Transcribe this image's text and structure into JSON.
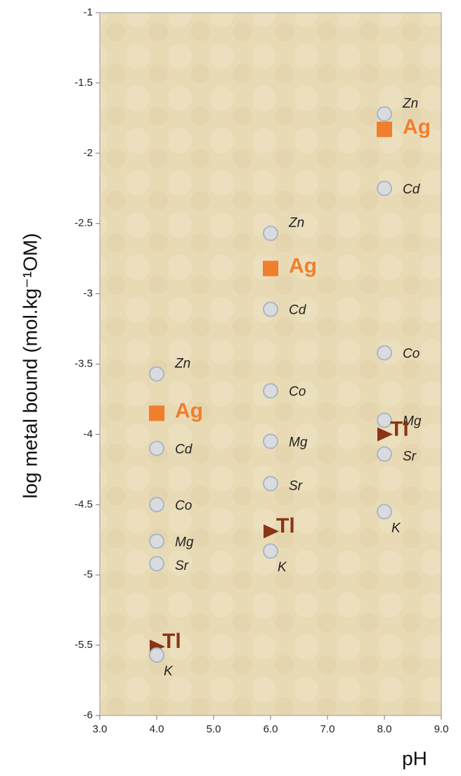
{
  "chart_data": {
    "type": "scatter",
    "xlabel": "pH",
    "ylabel": "log metal bound (mol.kg⁻¹OM)",
    "x": [
      4,
      6,
      8
    ],
    "series": [
      {
        "name": "Zn",
        "marker": "circle",
        "color": "#d9dbde",
        "values": [
          -3.57,
          -2.57,
          -1.72
        ]
      },
      {
        "name": "Ag",
        "marker": "square",
        "color": "#f07f2d",
        "values": [
          -3.85,
          -2.82,
          -1.83
        ]
      },
      {
        "name": "Cd",
        "marker": "circle",
        "color": "#d9dbde",
        "values": [
          -4.1,
          -3.11,
          -2.25
        ]
      },
      {
        "name": "Co",
        "marker": "circle",
        "color": "#d9dbde",
        "values": [
          -4.5,
          -3.69,
          -3.42
        ]
      },
      {
        "name": "Mg",
        "marker": "circle",
        "color": "#d9dbde",
        "values": [
          -4.76,
          -4.05,
          -3.9
        ]
      },
      {
        "name": "Sr",
        "marker": "circle",
        "color": "#d9dbde",
        "values": [
          -4.92,
          -4.35,
          -4.14
        ]
      },
      {
        "name": "Tl",
        "marker": "triangle",
        "color": "#8a3516",
        "values": [
          -5.51,
          -4.69,
          -4.0
        ]
      },
      {
        "name": "K",
        "marker": "circle",
        "color": "#d9dbde",
        "values": [
          -5.57,
          -4.83,
          -4.55
        ]
      }
    ],
    "xlim": [
      3,
      9
    ],
    "xticks": [
      {
        "value": 3,
        "label": "3.0"
      },
      {
        "value": 4,
        "label": "4.0"
      },
      {
        "value": 5,
        "label": "5.0"
      },
      {
        "value": 6,
        "label": "6.0"
      },
      {
        "value": 7,
        "label": "7.0"
      },
      {
        "value": 8,
        "label": "8.0"
      },
      {
        "value": 9,
        "label": "9.0"
      }
    ],
    "ylim": [
      -6,
      -1
    ],
    "yticks": [
      -6,
      -5.5,
      -5,
      -4.5,
      -4,
      -3.5,
      -3,
      -2.5,
      -2,
      -1.5,
      -1
    ],
    "background": "#e9dab6"
  }
}
